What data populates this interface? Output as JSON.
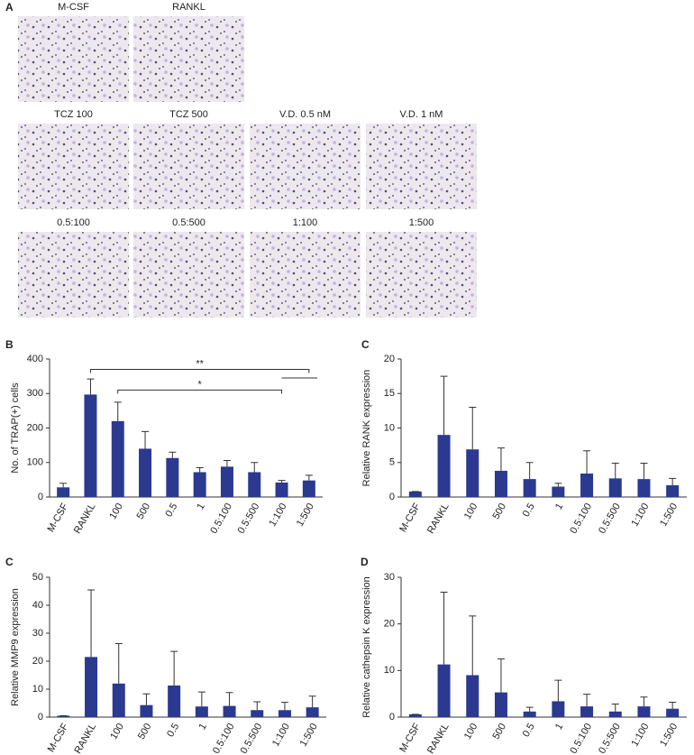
{
  "panel_a": {
    "label": "A",
    "images": [
      "M-CSF",
      "RANKL",
      "TCZ 100",
      "TCZ 500",
      "V.D. 0.5 nM",
      "V.D. 1 nM",
      "0.5:100",
      "0.5:500",
      "1:100",
      "1:500"
    ]
  },
  "chart_data": [
    {
      "type": "bar",
      "panel_label": "B",
      "ylabel": "No. of TRAP(+) cells",
      "categories": [
        "M-CSF",
        "RANKL",
        "100",
        "500",
        "0.5",
        "1",
        "0.5:100",
        "0.5:500",
        "1:100",
        "1:500"
      ],
      "values": [
        28,
        297,
        220,
        140,
        113,
        72,
        88,
        72,
        42,
        48
      ],
      "errors": [
        12,
        45,
        55,
        50,
        17,
        13,
        18,
        28,
        6,
        15
      ],
      "ylim": [
        0,
        400
      ],
      "yticks": [
        0,
        100,
        200,
        300,
        400
      ],
      "color": "#2b3990",
      "significance": [
        "**",
        "*"
      ]
    },
    {
      "type": "bar",
      "panel_label": "C",
      "ylabel": "Relative RANK expression",
      "categories": [
        "M-CSF",
        "RANKL",
        "100",
        "500",
        "0.5",
        "1",
        "0.5:100",
        "0.5:500",
        "1:100",
        "1:500"
      ],
      "values": [
        0.8,
        9,
        6.9,
        3.8,
        2.6,
        1.5,
        3.4,
        2.7,
        2.6,
        1.7
      ],
      "errors": [
        0,
        8.5,
        6.1,
        3.3,
        2.4,
        0.5,
        3.3,
        2.2,
        2.3,
        1.0
      ],
      "ylim": [
        0,
        20
      ],
      "yticks": [
        0,
        5,
        10,
        15,
        20
      ],
      "color": "#2b3990"
    },
    {
      "type": "bar",
      "panel_label": "C",
      "ylabel": "Relative MMP9 expression",
      "categories": [
        "M-CSF",
        "RANKL",
        "100",
        "500",
        "0.5",
        "1",
        "0.5:100",
        "0.5:500",
        "1:100",
        "1:500"
      ],
      "values": [
        0.5,
        21.5,
        12,
        4.3,
        11.3,
        3.8,
        4,
        2.5,
        2.5,
        3.5
      ],
      "errors": [
        0,
        24,
        14.3,
        4,
        12.2,
        5.2,
        4.8,
        3,
        2.8,
        4
      ],
      "ylim": [
        0,
        50
      ],
      "yticks": [
        0,
        10,
        20,
        30,
        40,
        50
      ],
      "color": "#2b3990"
    },
    {
      "type": "bar",
      "panel_label": "D",
      "ylabel": "Relative cathepsin K expression",
      "categories": [
        "M-CSF",
        "RANKL",
        "100",
        "500",
        "0.5",
        "1",
        "0.5:100",
        "0.5:500",
        "1:100",
        "1:500"
      ],
      "values": [
        0.6,
        11.3,
        9,
        5.3,
        1.2,
        3.4,
        2.3,
        1.2,
        2.3,
        1.8
      ],
      "errors": [
        0,
        15.5,
        12.7,
        7.2,
        0.9,
        4.5,
        2.6,
        1.6,
        2,
        1.4
      ],
      "ylim": [
        0,
        30
      ],
      "yticks": [
        0,
        10,
        20,
        30
      ],
      "color": "#2b3990"
    }
  ]
}
